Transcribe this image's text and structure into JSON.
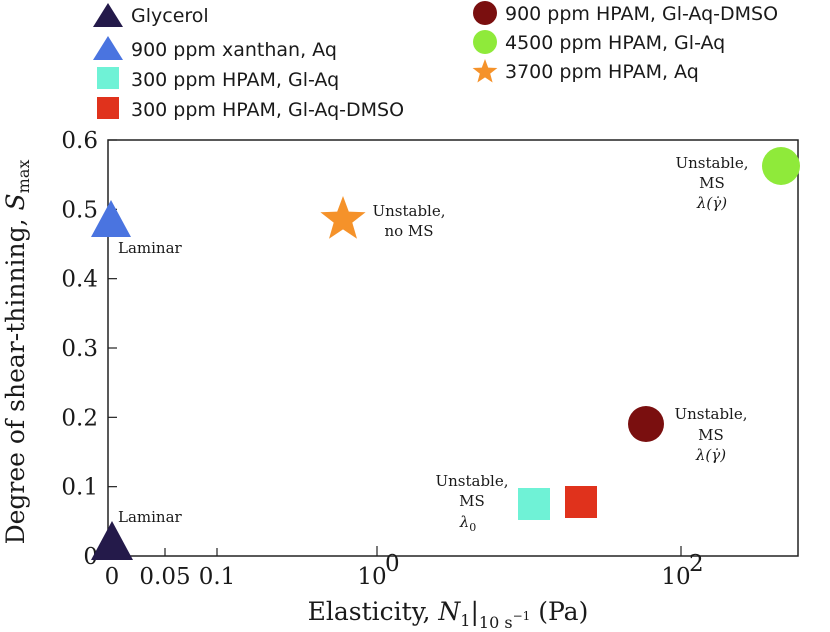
{
  "chart_data": {
    "type": "scatter",
    "title": "",
    "xlabel_parts": [
      "Elasticity, ",
      "N",
      "1",
      "|",
      "10 s",
      "−1",
      " (Pa)"
    ],
    "ylabel_parts": [
      "Degree of shear-thinning, ",
      "S",
      "max"
    ],
    "ylim": [
      0,
      0.6
    ],
    "yticks": [
      "0",
      "0.1",
      "0.2",
      "0.3",
      "0.4",
      "0.5",
      "0.6"
    ],
    "xticks": [
      {
        "label": "0",
        "value": 0
      },
      {
        "label": "0.05",
        "value": 0.05
      },
      {
        "label": "0.1",
        "value": 0.1
      },
      {
        "label": "10",
        "sup": "0",
        "value": 1
      },
      {
        "label": "10",
        "sup": "2",
        "value": 100
      }
    ],
    "grid": false,
    "legend_placement": "top",
    "series": [
      {
        "name": "Glycerol",
        "marker": "triangle",
        "color": "#241a4a",
        "x": 0,
        "y": 0.0
      },
      {
        "name": "900 ppm xanthan, Aq",
        "marker": "triangle",
        "color": "#4a74e0",
        "x": 0,
        "y": 0.48
      },
      {
        "name": "300 ppm HPAM, Gl-Aq",
        "marker": "square",
        "color": "#6ff2d6",
        "x": 11,
        "y": 0.063
      },
      {
        "name": "300 ppm HPAM, Gl-Aq-DMSO",
        "marker": "square",
        "color": "#e0321c",
        "x": 25,
        "y": 0.067
      },
      {
        "name": "900 ppm HPAM, Gl-Aq-DMSO",
        "marker": "circle",
        "color": "#7a0f0f",
        "x": 60,
        "y": 0.18
      },
      {
        "name": "4500 ppm HPAM, Gl-Aq",
        "marker": "circle",
        "color": "#8fea3a",
        "x": 450,
        "y": 0.56
      },
      {
        "name": "3700 ppm HPAM, Aq",
        "marker": "star",
        "color": "#f5922a",
        "x": 0.6,
        "y": 0.48
      }
    ],
    "annotations": [
      {
        "id": "glycerol",
        "lines": [
          "Laminar"
        ]
      },
      {
        "id": "xanthan",
        "lines": [
          "Laminar"
        ]
      },
      {
        "id": "star",
        "lines": [
          "Unstable,",
          "no MS"
        ]
      },
      {
        "id": "hpam4500",
        "lines": [
          "Unstable,",
          "MS"
        ],
        "lambda": "λ(γ̇)"
      },
      {
        "id": "hpam900",
        "lines": [
          "Unstable,",
          "MS"
        ],
        "lambda": "λ(γ̇)"
      },
      {
        "id": "squares",
        "lines": [
          "Unstable,",
          "MS"
        ],
        "lambda": "λ",
        "lambda_sub": "0"
      }
    ]
  }
}
